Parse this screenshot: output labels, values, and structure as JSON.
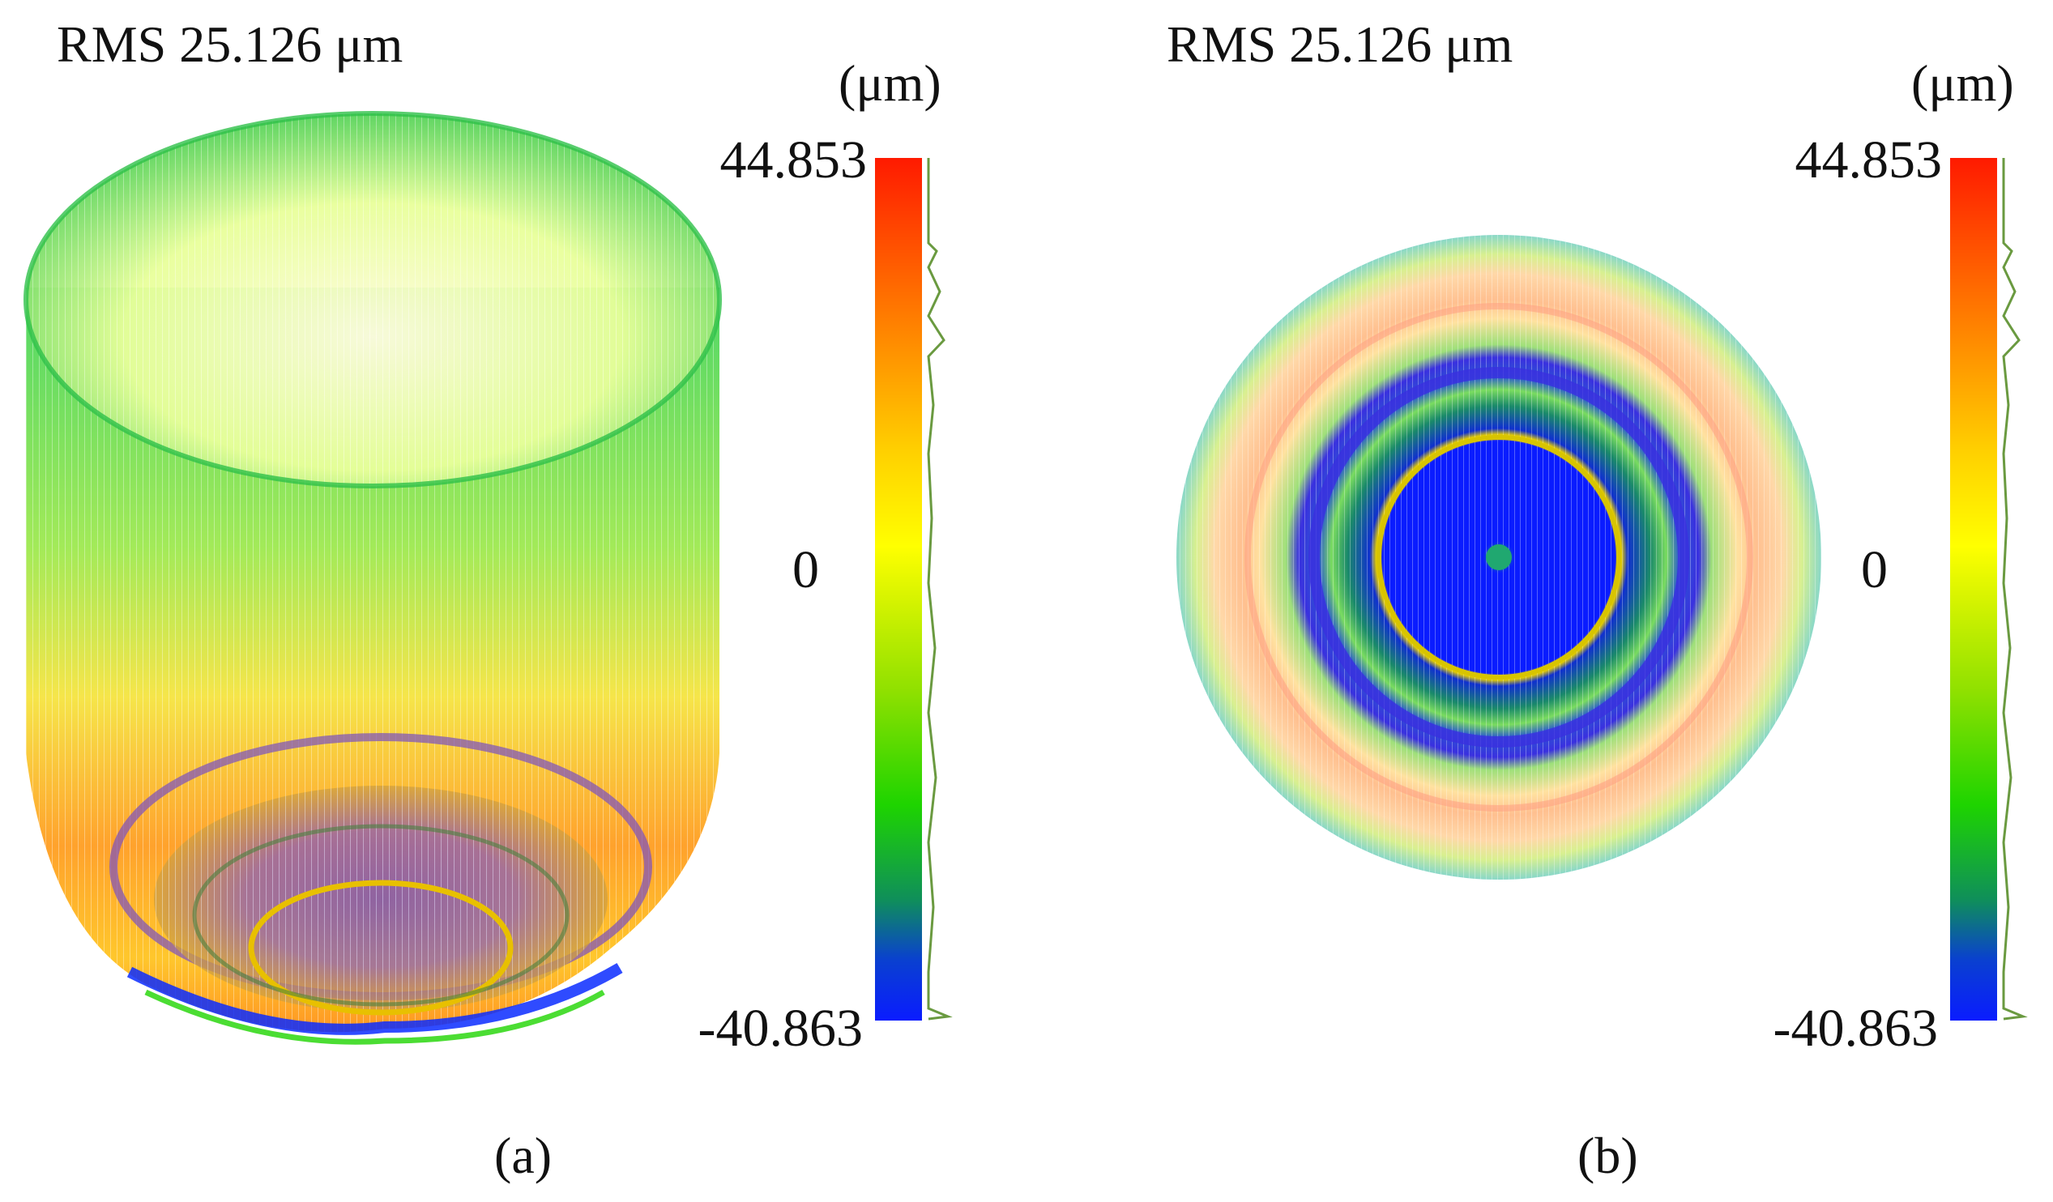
{
  "panels": [
    {
      "rms_label": "RMS 25.126 μm",
      "unit_label": "(μm)",
      "colorbar": {
        "max": "44.853",
        "zero": "0",
        "min": "-40.863"
      },
      "caption": "(a)"
    },
    {
      "rms_label": "RMS 25.126 μm",
      "unit_label": "(μm)",
      "colorbar": {
        "max": "44.853",
        "zero": "0",
        "min": "-40.863"
      },
      "caption": "(b)"
    }
  ],
  "colors": {
    "red": "#ff1a00",
    "orange": "#ff8c00",
    "yellow": "#ffff00",
    "green": "#1ed400",
    "dark_green": "#0f8f3a",
    "blue": "#0a1cff"
  }
}
